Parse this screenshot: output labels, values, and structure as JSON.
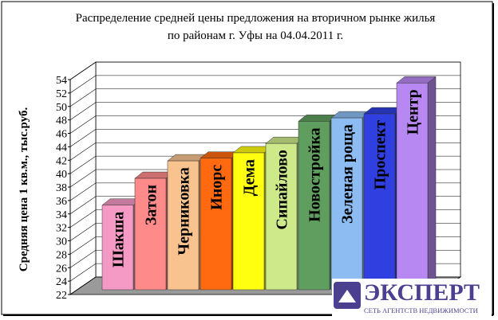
{
  "chart_data": {
    "type": "bar3d",
    "title": "Распределение средней цены предложения на вторичном рынке жилья по районам г. Уфы на 04.04.2011 г.",
    "y_label": "Средняя цена 1 кв.м., тыс.руб.",
    "categories": [
      "Шакша",
      "Затон",
      "Черниковка",
      "Инорс",
      "Дема",
      "Сипайлово",
      "Новостройка",
      "Зеленая роща",
      "Проспект",
      "Центр"
    ],
    "values": [
      35.3,
      39.3,
      41.9,
      42.3,
      43.1,
      44.5,
      47.8,
      48.3,
      48.9,
      53.5
    ],
    "colors": [
      "#f49ac4",
      "#ff8a8a",
      "#f8c38e",
      "#ff6a10",
      "#ffff10",
      "#cde98a",
      "#5f9e5f",
      "#8cbcf2",
      "#3040e0",
      "#b888f2"
    ],
    "ylim": [
      22,
      54
    ],
    "yticks": [
      22,
      24,
      26,
      28,
      30,
      32,
      34,
      36,
      38,
      40,
      42,
      44,
      46,
      48,
      50,
      52,
      54
    ],
    "grid": true
  },
  "logo": {
    "title": "ЭКСПЕРТ",
    "subtitle": "СЕТЬ АГЕНТСТВ НЕДВИЖИМОСТИ"
  }
}
